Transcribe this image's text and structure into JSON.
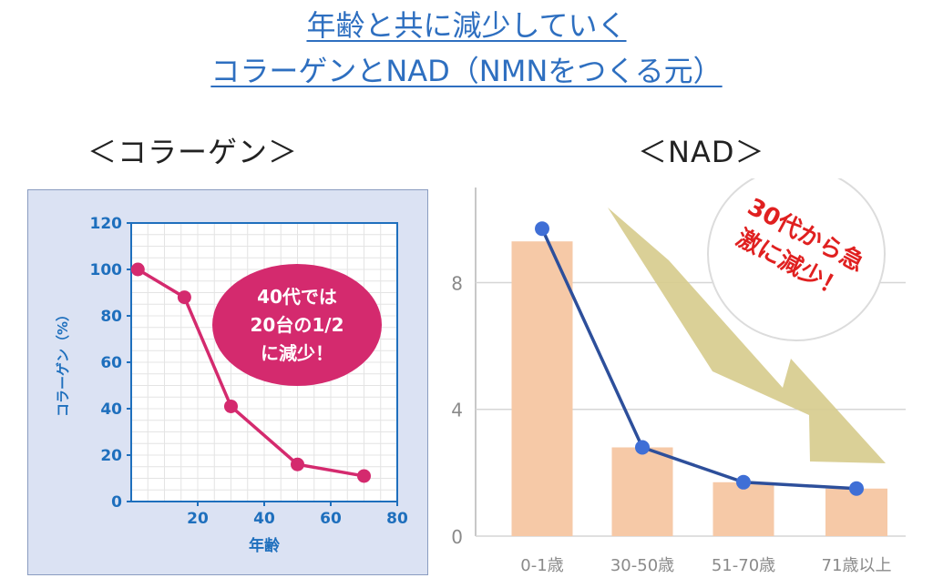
{
  "header": {
    "title_line1": "年齢と共に減少していく",
    "title_line2": "コラーゲンとNAD（NMNをつくる元）"
  },
  "colors": {
    "title": "#2e6fc0",
    "collagen_axis": "#1e6fbd",
    "collagen_line": "#d42a6e",
    "nad_bar": "#f6c9a7",
    "nad_line": "#2d4f9b",
    "nad_point": "#3f6fd6",
    "arrow": "#d7cc8e",
    "callout_text_red": "#e02020"
  },
  "chart_data": [
    {
      "type": "line",
      "heading": "＜コラーゲン＞",
      "xlabel": "年齢",
      "ylabel": "コラーゲン（%）",
      "xlim": [
        0,
        80
      ],
      "ylim": [
        0,
        120
      ],
      "xticks": [
        20,
        40,
        60,
        80
      ],
      "yticks": [
        0,
        20,
        40,
        60,
        80,
        100,
        120
      ],
      "grid": true,
      "series": [
        {
          "x": [
            2,
            16,
            30,
            50,
            70
          ],
          "values": [
            100,
            88,
            41,
            16,
            11
          ]
        }
      ],
      "annotation": [
        "40代では",
        "20台の1/2",
        "に減少！"
      ]
    },
    {
      "type": "bar",
      "heading": "＜NAD＞",
      "categories": [
        "0-1歳",
        "30-50歳",
        "51-70歳",
        "71歳以上"
      ],
      "ylim": [
        0,
        11
      ],
      "yticks": [
        0,
        4,
        8
      ],
      "grid": true,
      "series": [
        {
          "type": "bar",
          "values": [
            9.3,
            2.8,
            1.7,
            1.5
          ]
        },
        {
          "type": "line",
          "values": [
            9.7,
            2.8,
            1.7,
            1.5
          ]
        }
      ],
      "annotation": [
        "30代から急",
        "激に減少！"
      ]
    }
  ]
}
